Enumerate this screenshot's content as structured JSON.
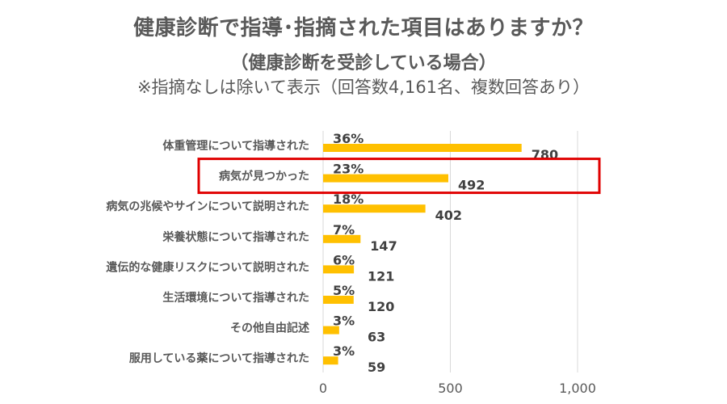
{
  "chart_data": {
    "type": "bar",
    "orientation": "horizontal",
    "title": "健康診断で指導･指摘された項目はありますか？",
    "subtitle": "（健康診断を受診している場合）",
    "note": "※指摘なしは除いて表示（回答数4,161名、複数回答あり）",
    "categories": [
      "体重管理について指導された",
      "病気が見つかった",
      "病気の兆候やサインについて説明された",
      "栄養状態について指導された",
      "遺伝的な健康リスクについて説明された",
      "生活環境について指導された",
      "その他自由記述",
      "服用している薬について指導された"
    ],
    "values": [
      780,
      492,
      402,
      147,
      121,
      120,
      63,
      59
    ],
    "percent_labels": [
      "36%",
      "23%",
      "18%",
      "7%",
      "6%",
      "5%",
      "3%",
      "3%"
    ],
    "value_labels": [
      "780",
      "492",
      "402",
      "147",
      "121",
      "120",
      "63",
      "59"
    ],
    "xlim": [
      0,
      1000
    ],
    "x_ticks": [
      0,
      500,
      1000
    ],
    "x_tick_labels": [
      "0",
      "500",
      "1,000"
    ],
    "grid": true,
    "highlighted_category_index": 1,
    "bar_color": "#FFC000",
    "highlight_color": "#E00000"
  }
}
